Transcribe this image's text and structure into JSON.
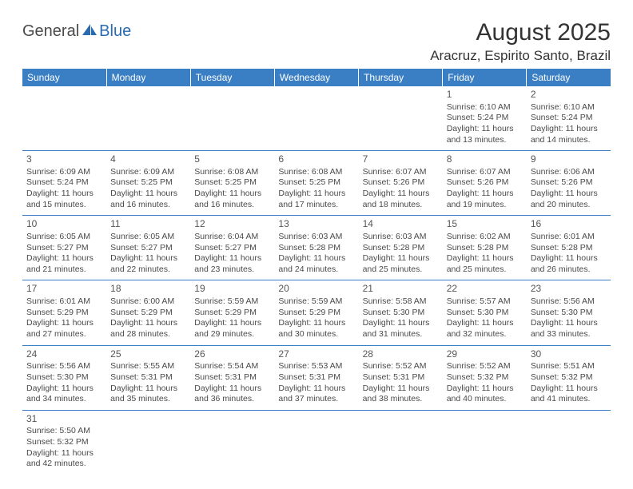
{
  "logo": {
    "part1": "General",
    "part2": "Blue"
  },
  "title": "August 2025",
  "location": "Aracruz, Espirito Santo, Brazil",
  "colors": {
    "header_bg": "#3a7fc4",
    "header_text": "#ffffff",
    "border": "#3a7fc4",
    "text": "#4a4a4a",
    "logo_blue": "#2a6ab0"
  },
  "days_of_week": [
    "Sunday",
    "Monday",
    "Tuesday",
    "Wednesday",
    "Thursday",
    "Friday",
    "Saturday"
  ],
  "weeks": [
    [
      null,
      null,
      null,
      null,
      null,
      {
        "n": "1",
        "sr": "Sunrise: 6:10 AM",
        "ss": "Sunset: 5:24 PM",
        "d1": "Daylight: 11 hours",
        "d2": "and 13 minutes."
      },
      {
        "n": "2",
        "sr": "Sunrise: 6:10 AM",
        "ss": "Sunset: 5:24 PM",
        "d1": "Daylight: 11 hours",
        "d2": "and 14 minutes."
      }
    ],
    [
      {
        "n": "3",
        "sr": "Sunrise: 6:09 AM",
        "ss": "Sunset: 5:24 PM",
        "d1": "Daylight: 11 hours",
        "d2": "and 15 minutes."
      },
      {
        "n": "4",
        "sr": "Sunrise: 6:09 AM",
        "ss": "Sunset: 5:25 PM",
        "d1": "Daylight: 11 hours",
        "d2": "and 16 minutes."
      },
      {
        "n": "5",
        "sr": "Sunrise: 6:08 AM",
        "ss": "Sunset: 5:25 PM",
        "d1": "Daylight: 11 hours",
        "d2": "and 16 minutes."
      },
      {
        "n": "6",
        "sr": "Sunrise: 6:08 AM",
        "ss": "Sunset: 5:25 PM",
        "d1": "Daylight: 11 hours",
        "d2": "and 17 minutes."
      },
      {
        "n": "7",
        "sr": "Sunrise: 6:07 AM",
        "ss": "Sunset: 5:26 PM",
        "d1": "Daylight: 11 hours",
        "d2": "and 18 minutes."
      },
      {
        "n": "8",
        "sr": "Sunrise: 6:07 AM",
        "ss": "Sunset: 5:26 PM",
        "d1": "Daylight: 11 hours",
        "d2": "and 19 minutes."
      },
      {
        "n": "9",
        "sr": "Sunrise: 6:06 AM",
        "ss": "Sunset: 5:26 PM",
        "d1": "Daylight: 11 hours",
        "d2": "and 20 minutes."
      }
    ],
    [
      {
        "n": "10",
        "sr": "Sunrise: 6:05 AM",
        "ss": "Sunset: 5:27 PM",
        "d1": "Daylight: 11 hours",
        "d2": "and 21 minutes."
      },
      {
        "n": "11",
        "sr": "Sunrise: 6:05 AM",
        "ss": "Sunset: 5:27 PM",
        "d1": "Daylight: 11 hours",
        "d2": "and 22 minutes."
      },
      {
        "n": "12",
        "sr": "Sunrise: 6:04 AM",
        "ss": "Sunset: 5:27 PM",
        "d1": "Daylight: 11 hours",
        "d2": "and 23 minutes."
      },
      {
        "n": "13",
        "sr": "Sunrise: 6:03 AM",
        "ss": "Sunset: 5:28 PM",
        "d1": "Daylight: 11 hours",
        "d2": "and 24 minutes."
      },
      {
        "n": "14",
        "sr": "Sunrise: 6:03 AM",
        "ss": "Sunset: 5:28 PM",
        "d1": "Daylight: 11 hours",
        "d2": "and 25 minutes."
      },
      {
        "n": "15",
        "sr": "Sunrise: 6:02 AM",
        "ss": "Sunset: 5:28 PM",
        "d1": "Daylight: 11 hours",
        "d2": "and 25 minutes."
      },
      {
        "n": "16",
        "sr": "Sunrise: 6:01 AM",
        "ss": "Sunset: 5:28 PM",
        "d1": "Daylight: 11 hours",
        "d2": "and 26 minutes."
      }
    ],
    [
      {
        "n": "17",
        "sr": "Sunrise: 6:01 AM",
        "ss": "Sunset: 5:29 PM",
        "d1": "Daylight: 11 hours",
        "d2": "and 27 minutes."
      },
      {
        "n": "18",
        "sr": "Sunrise: 6:00 AM",
        "ss": "Sunset: 5:29 PM",
        "d1": "Daylight: 11 hours",
        "d2": "and 28 minutes."
      },
      {
        "n": "19",
        "sr": "Sunrise: 5:59 AM",
        "ss": "Sunset: 5:29 PM",
        "d1": "Daylight: 11 hours",
        "d2": "and 29 minutes."
      },
      {
        "n": "20",
        "sr": "Sunrise: 5:59 AM",
        "ss": "Sunset: 5:29 PM",
        "d1": "Daylight: 11 hours",
        "d2": "and 30 minutes."
      },
      {
        "n": "21",
        "sr": "Sunrise: 5:58 AM",
        "ss": "Sunset: 5:30 PM",
        "d1": "Daylight: 11 hours",
        "d2": "and 31 minutes."
      },
      {
        "n": "22",
        "sr": "Sunrise: 5:57 AM",
        "ss": "Sunset: 5:30 PM",
        "d1": "Daylight: 11 hours",
        "d2": "and 32 minutes."
      },
      {
        "n": "23",
        "sr": "Sunrise: 5:56 AM",
        "ss": "Sunset: 5:30 PM",
        "d1": "Daylight: 11 hours",
        "d2": "and 33 minutes."
      }
    ],
    [
      {
        "n": "24",
        "sr": "Sunrise: 5:56 AM",
        "ss": "Sunset: 5:30 PM",
        "d1": "Daylight: 11 hours",
        "d2": "and 34 minutes."
      },
      {
        "n": "25",
        "sr": "Sunrise: 5:55 AM",
        "ss": "Sunset: 5:31 PM",
        "d1": "Daylight: 11 hours",
        "d2": "and 35 minutes."
      },
      {
        "n": "26",
        "sr": "Sunrise: 5:54 AM",
        "ss": "Sunset: 5:31 PM",
        "d1": "Daylight: 11 hours",
        "d2": "and 36 minutes."
      },
      {
        "n": "27",
        "sr": "Sunrise: 5:53 AM",
        "ss": "Sunset: 5:31 PM",
        "d1": "Daylight: 11 hours",
        "d2": "and 37 minutes."
      },
      {
        "n": "28",
        "sr": "Sunrise: 5:52 AM",
        "ss": "Sunset: 5:31 PM",
        "d1": "Daylight: 11 hours",
        "d2": "and 38 minutes."
      },
      {
        "n": "29",
        "sr": "Sunrise: 5:52 AM",
        "ss": "Sunset: 5:32 PM",
        "d1": "Daylight: 11 hours",
        "d2": "and 40 minutes."
      },
      {
        "n": "30",
        "sr": "Sunrise: 5:51 AM",
        "ss": "Sunset: 5:32 PM",
        "d1": "Daylight: 11 hours",
        "d2": "and 41 minutes."
      }
    ],
    [
      {
        "n": "31",
        "sr": "Sunrise: 5:50 AM",
        "ss": "Sunset: 5:32 PM",
        "d1": "Daylight: 11 hours",
        "d2": "and 42 minutes."
      },
      null,
      null,
      null,
      null,
      null,
      null
    ]
  ]
}
